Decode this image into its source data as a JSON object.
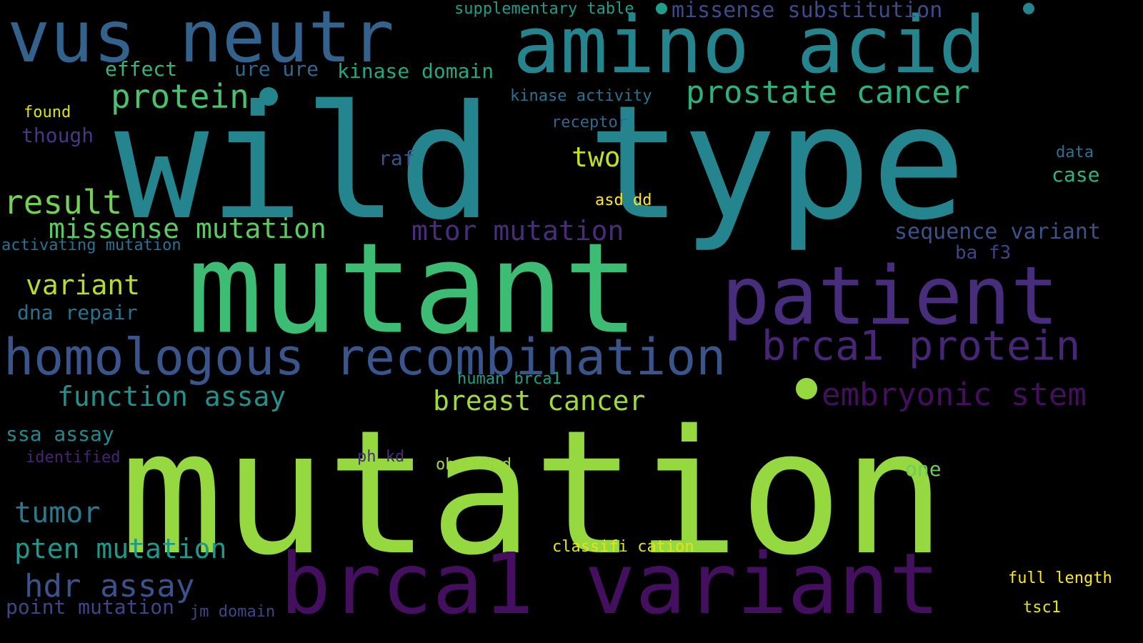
{
  "words": [
    {
      "text": "mutation",
      "color": "#95d840"
    },
    {
      "text": "wild type",
      "color": "#25858e"
    },
    {
      "text": "mutant",
      "color": "#3dbc74"
    },
    {
      "text": "brca1 variant",
      "color": "#440f5e"
    },
    {
      "text": "amino acid",
      "color": "#25858e"
    },
    {
      "text": "vus neutr",
      "color": "#33638d"
    },
    {
      "text": "patient",
      "color": "#472d7b"
    },
    {
      "text": "homologous recombination",
      "color": "#3a548c"
    },
    {
      "text": "brca1 protein",
      "color": "#482677"
    },
    {
      "text": "embryonic stem",
      "color": "#440f5e"
    },
    {
      "text": "prostate cancer",
      "color": "#2db27d"
    },
    {
      "text": "protein",
      "color": "#4ac16d"
    },
    {
      "text": "result",
      "color": "#74d055"
    },
    {
      "text": "missense mutation",
      "color": "#5ec962"
    },
    {
      "text": "mtor mutation",
      "color": "#472d7b"
    },
    {
      "text": "breast cancer",
      "color": "#a0da39"
    },
    {
      "text": "function assay",
      "color": "#21918c"
    },
    {
      "text": "variant",
      "color": "#b5de2b"
    },
    {
      "text": "tumor",
      "color": "#2a788e"
    },
    {
      "text": "pten mutation",
      "color": "#1f988b"
    },
    {
      "text": "hdr assay",
      "color": "#3b528b"
    },
    {
      "text": "two",
      "color": "#c2df23"
    },
    {
      "text": "sequence variant",
      "color": "#3b528b"
    },
    {
      "text": "missense substitution",
      "color": "#3e4a89"
    },
    {
      "text": "kinase domain",
      "color": "#22a884"
    },
    {
      "text": "effect",
      "color": "#35b779"
    },
    {
      "text": "ure ure",
      "color": "#31688e"
    },
    {
      "text": "supplementary table",
      "color": "#1f9e89"
    },
    {
      "text": "dna repair",
      "color": "#2c728e"
    },
    {
      "text": "ssa assay",
      "color": "#23898e"
    },
    {
      "text": "point mutation",
      "color": "#414487"
    },
    {
      "text": "though",
      "color": "#443983"
    },
    {
      "text": "found",
      "color": "#d8e219"
    },
    {
      "text": "activating mutation",
      "color": "#2c728e"
    },
    {
      "text": "kinase activity",
      "color": "#2c728e"
    },
    {
      "text": "receptor",
      "color": "#31688e"
    },
    {
      "text": "raf",
      "color": "#3b528b"
    },
    {
      "text": "asd dd",
      "color": "#fde725"
    },
    {
      "text": "ba f3",
      "color": "#414487"
    },
    {
      "text": "human brca1",
      "color": "#1f9e89"
    },
    {
      "text": "observed",
      "color": "#9fda3a"
    },
    {
      "text": "ph kd",
      "color": "#472d7b"
    },
    {
      "text": "identified",
      "color": "#482475"
    },
    {
      "text": "one",
      "color": "#6ccd5a"
    },
    {
      "text": "classifi cation",
      "color": "#e2e418"
    },
    {
      "text": "full length",
      "color": "#fde725"
    },
    {
      "text": "tsc1",
      "color": "#e5e419"
    },
    {
      "text": "jm domain",
      "color": "#414487"
    },
    {
      "text": "data",
      "color": "#2c728e"
    },
    {
      "text": "case",
      "color": "#2fb47c"
    }
  ]
}
